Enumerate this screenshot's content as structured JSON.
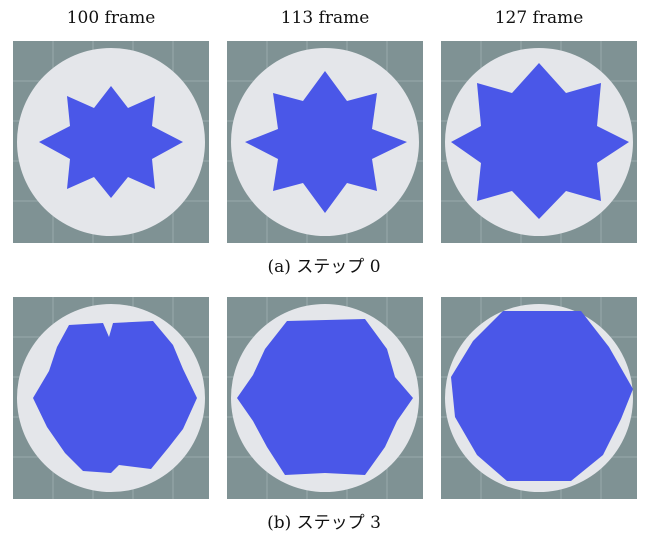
{
  "columns": [
    "100 frame",
    "113 frame",
    "127 frame"
  ],
  "rows": [
    {
      "caption": "(a) ステップ 0",
      "panels": [
        {
          "frame": "100 frame",
          "shape": "star",
          "fill_level": 0.44
        },
        {
          "frame": "113 frame",
          "shape": "star",
          "fill_level": 0.58
        },
        {
          "frame": "127 frame",
          "shape": "star",
          "fill_level": 0.7
        }
      ]
    },
    {
      "caption": "(b) ステップ 3",
      "panels": [
        {
          "frame": "100 frame",
          "shape": "rough-hexagon",
          "fill_level": 0.7
        },
        {
          "frame": "113 frame",
          "shape": "rough-hexagon",
          "fill_level": 0.8
        },
        {
          "frame": "127 frame",
          "shape": "hexagon",
          "fill_level": 0.86
        }
      ]
    }
  ],
  "colors": {
    "background": "#7f9294",
    "grid": "#9aaaac",
    "disk": "#e4e6ea",
    "fluid": "#4a57e8"
  }
}
